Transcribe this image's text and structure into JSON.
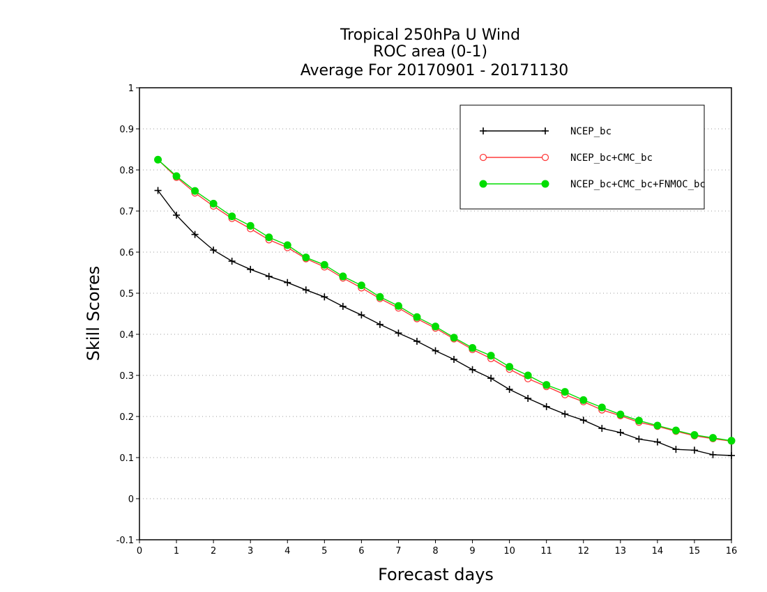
{
  "chart_data": {
    "type": "line",
    "title": [
      "Tropical 250hPa U Wind",
      "ROC area (0-1)",
      "Average For 20170901 - 20171130"
    ],
    "xlabel": "Forecast days",
    "ylabel": "Skill Scores",
    "xlim": [
      0,
      16
    ],
    "ylim": [
      -0.1,
      1
    ],
    "xticks": [
      "0",
      "1",
      "2",
      "3",
      "4",
      "5",
      "6",
      "7",
      "8",
      "9",
      "10",
      "11",
      "12",
      "13",
      "14",
      "15",
      "16"
    ],
    "yticks": [
      "-0.1",
      "0",
      "0.1",
      "0.2",
      "0.3",
      "0.4",
      "0.5",
      "0.6",
      "0.7",
      "0.8",
      "0.9",
      "1"
    ],
    "grid": true,
    "legend_position": "top-right",
    "x": [
      0.5,
      1,
      1.5,
      2,
      2.5,
      3,
      3.5,
      4,
      4.5,
      5,
      5.5,
      6,
      6.5,
      7,
      7.5,
      8,
      8.5,
      9,
      9.5,
      10,
      10.5,
      11,
      11.5,
      12,
      12.5,
      13,
      13.5,
      14,
      14.5,
      15,
      15.5,
      16
    ],
    "series": [
      {
        "name": "NCEP_bc",
        "color": "#000000",
        "marker": "plus",
        "values": [
          0.75,
          0.69,
          0.643,
          0.605,
          0.578,
          0.558,
          0.541,
          0.526,
          0.508,
          0.491,
          0.468,
          0.447,
          0.424,
          0.403,
          0.383,
          0.36,
          0.339,
          0.314,
          0.293,
          0.266,
          0.244,
          0.224,
          0.206,
          0.191,
          0.171,
          0.161,
          0.145,
          0.138,
          0.12,
          0.118,
          0.107,
          0.105
        ]
      },
      {
        "name": "NCEP_bc+CMC_bc",
        "color": "#ff3b3b",
        "marker": "open-circle",
        "values": [
          0.825,
          0.782,
          0.744,
          0.712,
          0.682,
          0.657,
          0.63,
          0.611,
          0.584,
          0.564,
          0.537,
          0.513,
          0.487,
          0.464,
          0.438,
          0.415,
          0.389,
          0.363,
          0.341,
          0.315,
          0.292,
          0.273,
          0.253,
          0.236,
          0.216,
          0.202,
          0.186,
          0.176,
          0.164,
          0.153,
          0.146,
          0.14
        ]
      },
      {
        "name": "NCEP_bc+CMC_bc+FNMOC_bc",
        "color": "#00dd00",
        "marker": "filled-circle",
        "values": [
          0.825,
          0.785,
          0.749,
          0.718,
          0.687,
          0.664,
          0.636,
          0.617,
          0.587,
          0.569,
          0.541,
          0.519,
          0.491,
          0.469,
          0.442,
          0.419,
          0.392,
          0.367,
          0.348,
          0.321,
          0.3,
          0.277,
          0.26,
          0.24,
          0.222,
          0.205,
          0.19,
          0.178,
          0.166,
          0.155,
          0.148,
          0.141
        ]
      }
    ]
  }
}
